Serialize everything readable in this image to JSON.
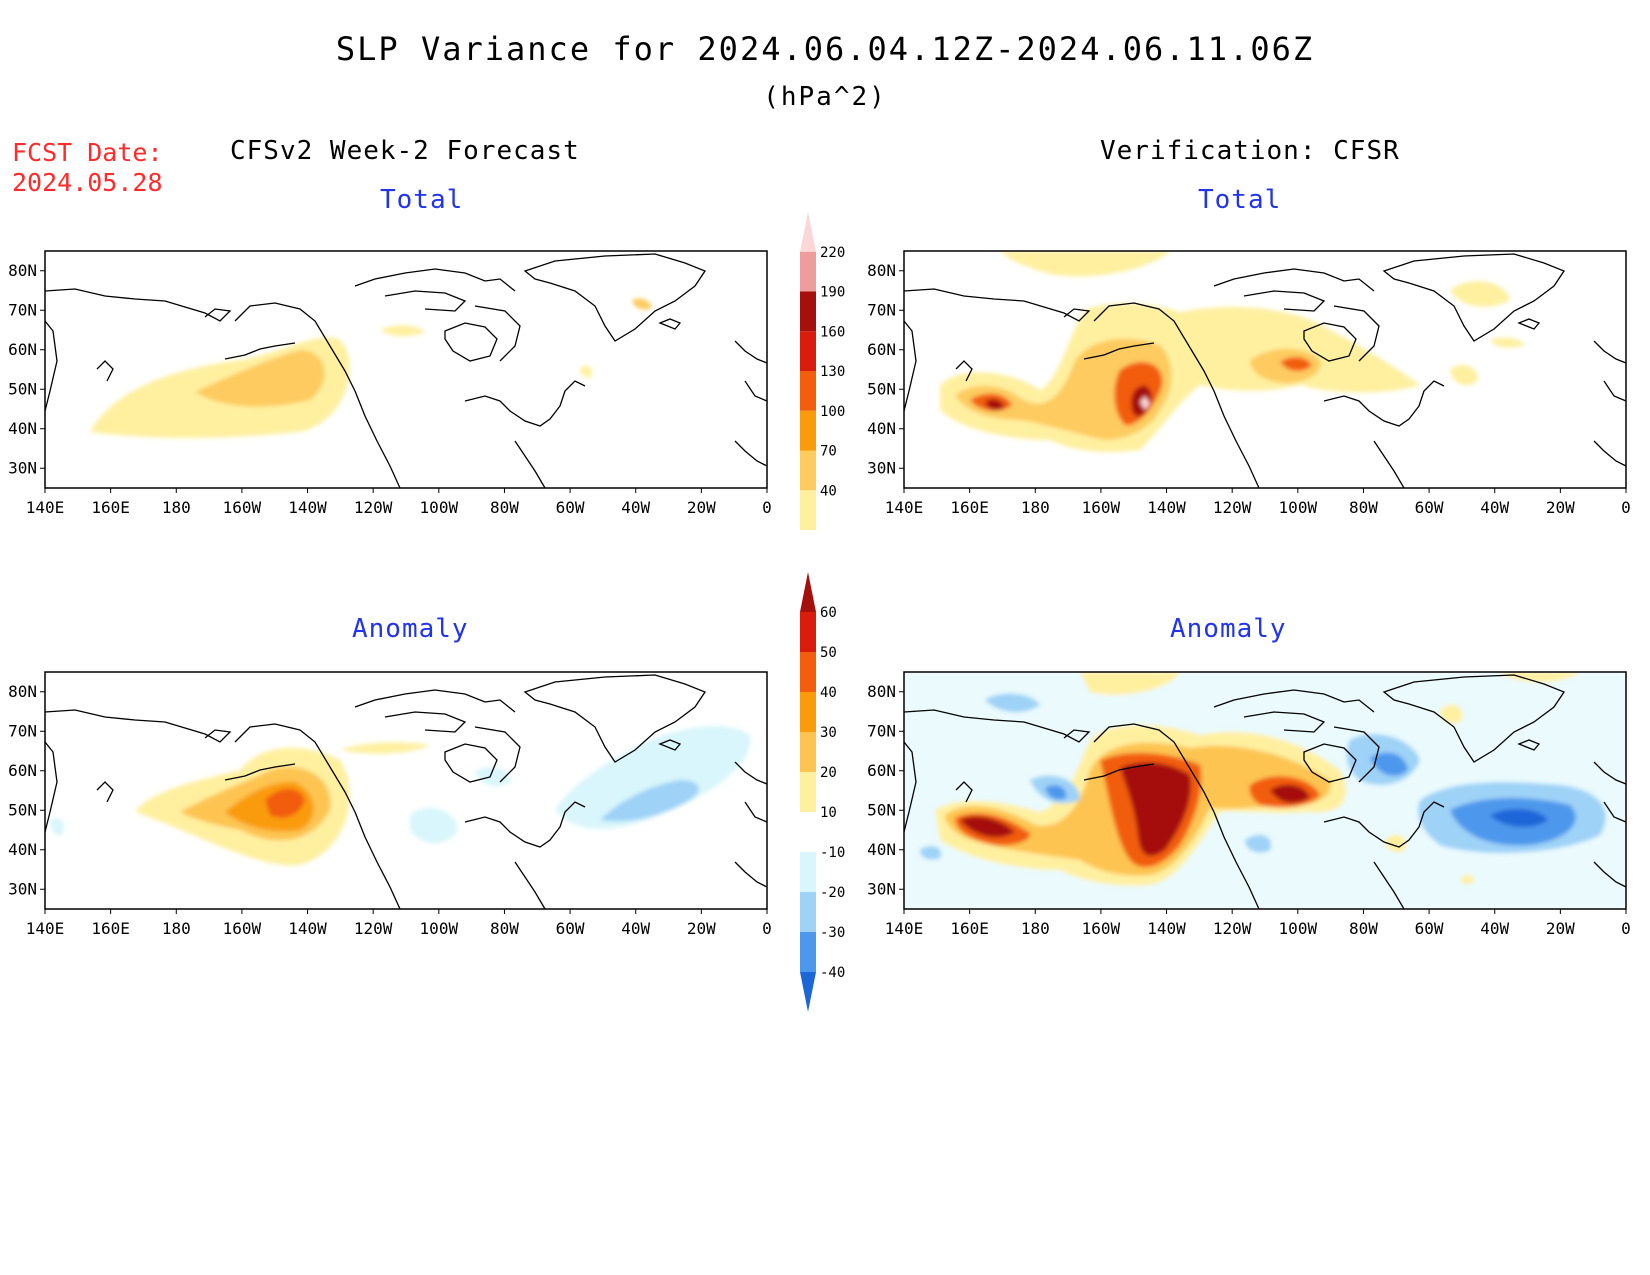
{
  "header": {
    "title": "SLP Variance for 2024.06.04.12Z-2024.06.11.06Z",
    "units": "(hPa^2)",
    "fcst_label": "FCST Date:",
    "fcst_date": "2024.05.28"
  },
  "columns": {
    "left_title": "CFSv2 Week-2 Forecast",
    "right_title": "Verification: CFSR"
  },
  "panels": {
    "total_label": "Total",
    "anomaly_label": "Anomaly"
  },
  "axes": {
    "lon_ticks": [
      "140E",
      "160E",
      "180",
      "160W",
      "140W",
      "120W",
      "100W",
      "80W",
      "60W",
      "40W",
      "20W",
      "0"
    ],
    "lat_ticks": [
      "30N",
      "40N",
      "50N",
      "60N",
      "70N",
      "80N"
    ]
  },
  "colorbars": {
    "total": {
      "levels": [
        "40",
        "70",
        "100",
        "130",
        "160",
        "190",
        "220"
      ],
      "colors": [
        "#fff0a0",
        "#fdcb5e",
        "#f99b0b",
        "#f25d0e",
        "#d91c0c",
        "#a50f0c",
        "#ef9c9c",
        "#fbd7d7"
      ]
    },
    "anomaly": {
      "levels": [
        "60",
        "50",
        "40",
        "30",
        "20",
        "10",
        "-10",
        "-20",
        "-30",
        "-40"
      ],
      "colors": [
        "#a50f0c",
        "#d91c0c",
        "#f25d0e",
        "#f99b0b",
        "#fdc451",
        "#fff0a0",
        "#ffffff",
        "#d8f6fb",
        "#9fd2f7",
        "#4d98ec",
        "#1c66d8"
      ]
    }
  },
  "chart_data": [
    {
      "type": "heatmap",
      "panel": "CFSv2 Week-2 Forecast - Total",
      "xlabel": "",
      "ylabel": "",
      "features": [
        {
          "region": "NE Pacific / Gulf of Alaska",
          "lon_range": [
            165,
            240
          ],
          "lat_range": [
            40,
            62
          ],
          "max_level": 100
        },
        {
          "region": "Greenland",
          "lon_range": [
            320,
            324
          ],
          "lat_range": [
            71,
            73
          ],
          "max_level": 70
        }
      ]
    },
    {
      "type": "heatmap",
      "panel": "Verification: CFSR - Total",
      "xlabel": "",
      "ylabel": "",
      "features": [
        {
          "region": "NW Pacific",
          "lon_range": [
            152,
            200
          ],
          "lat_range": [
            38,
            52
          ],
          "max_level": 160
        },
        {
          "region": "Gulf of Alaska",
          "lon_range": [
            200,
            240
          ],
          "lat_range": [
            38,
            65
          ],
          "max_level": 220
        },
        {
          "region": "Hudson Bay",
          "lon_range": [
            250,
            285
          ],
          "lat_range": [
            50,
            62
          ],
          "max_level": 130
        }
      ]
    },
    {
      "type": "heatmap",
      "panel": "CFSv2 Week-2 Forecast - Anomaly",
      "xlabel": "",
      "ylabel": "",
      "features": [
        {
          "region": "Gulf of Alaska",
          "lon_range": [
            180,
            240
          ],
          "lat_range": [
            42,
            65
          ],
          "max_level": 40
        },
        {
          "region": "North Atlantic",
          "lon_range": [
            310,
            345
          ],
          "lat_range": [
            45,
            65
          ],
          "min_level": -20
        }
      ]
    },
    {
      "type": "heatmap",
      "panel": "Verification: CFSR - Anomaly",
      "xlabel": "",
      "ylabel": "",
      "features": [
        {
          "region": "NW Pacific",
          "lon_range": [
            155,
            205
          ],
          "lat_range": [
            40,
            52
          ],
          "max_level": 60
        },
        {
          "region": "Gulf of Alaska / West Coast",
          "lon_range": [
            205,
            240
          ],
          "lat_range": [
            35,
            68
          ],
          "max_level": 60
        },
        {
          "region": "Hudson Bay",
          "lon_range": [
            255,
            280
          ],
          "lat_range": [
            50,
            62
          ],
          "max_level": 60
        },
        {
          "region": "Labrador Sea",
          "lon_range": [
            280,
            295
          ],
          "lat_range": [
            55,
            66
          ],
          "min_level": -40
        },
        {
          "region": "North Atlantic",
          "lon_range": [
            310,
            350
          ],
          "lat_range": [
            42,
            62
          ],
          "min_level": -40
        }
      ]
    }
  ]
}
